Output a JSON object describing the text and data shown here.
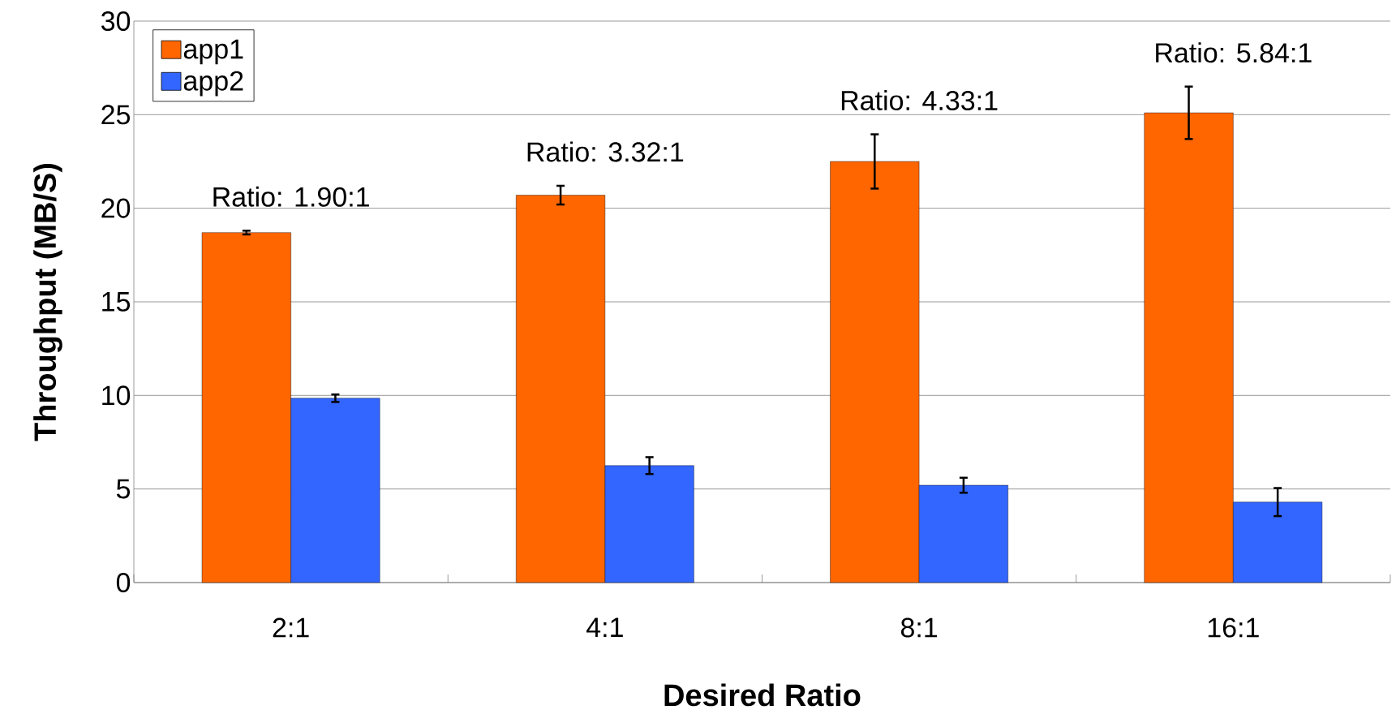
{
  "chart_data": {
    "type": "bar",
    "xlabel": "Desired Ratio",
    "ylabel": "Throughput (MB/S)",
    "categories": [
      "2:1",
      "4:1",
      "8:1",
      "16:1"
    ],
    "series": [
      {
        "name": "app1",
        "color": "#ff6600",
        "values": [
          18.7,
          20.7,
          22.5,
          25.1
        ],
        "errors": [
          0.1,
          0.5,
          1.45,
          1.4
        ]
      },
      {
        "name": "app2",
        "color": "#3366ff",
        "values": [
          9.85,
          6.25,
          5.2,
          4.3
        ],
        "errors": [
          0.2,
          0.45,
          0.4,
          0.75
        ]
      }
    ],
    "ylim": [
      0,
      30
    ],
    "yticks": [
      0,
      5,
      10,
      15,
      20,
      25,
      30
    ],
    "grid": "y",
    "legend": "top left",
    "annotations": [
      "Ratio: 1.90:1",
      "Ratio: 3.32:1",
      "Ratio: 4.33:1",
      "Ratio: 5.84:1"
    ]
  }
}
